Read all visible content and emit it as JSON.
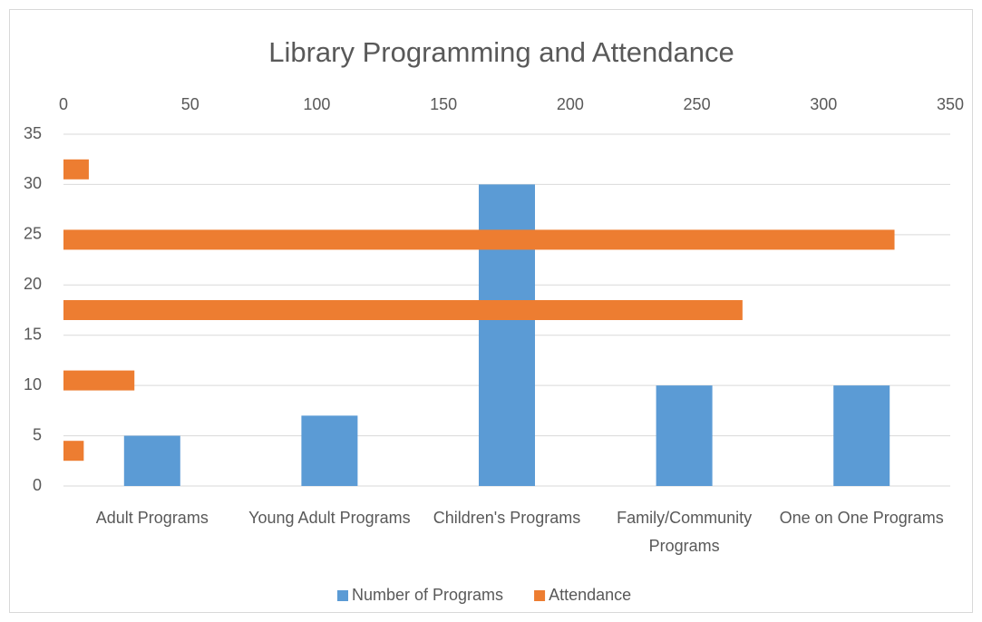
{
  "chart_data": {
    "type": "bar",
    "title": "Library Programming and Attendance",
    "categories": [
      "Adult Programs",
      "Young Adult Programs",
      "Children's Programs",
      "Family/Community Programs",
      "One on One Programs"
    ],
    "series": [
      {
        "name": "Number of Programs",
        "color": "#5b9bd5",
        "values": [
          5,
          7,
          30,
          10,
          10
        ]
      },
      {
        "name": "Attendance",
        "color": "#ed7d31",
        "axis": "x2",
        "values": [
          8,
          28,
          268,
          328,
          10
        ]
      }
    ],
    "ylim": [
      0,
      35
    ],
    "yticks": [
      0,
      5,
      10,
      15,
      20,
      25,
      30,
      35
    ],
    "x2lim": [
      0,
      350
    ],
    "x2ticks": [
      0,
      50,
      100,
      150,
      200,
      250,
      300,
      350
    ],
    "grid": true,
    "legend": "bottom"
  }
}
